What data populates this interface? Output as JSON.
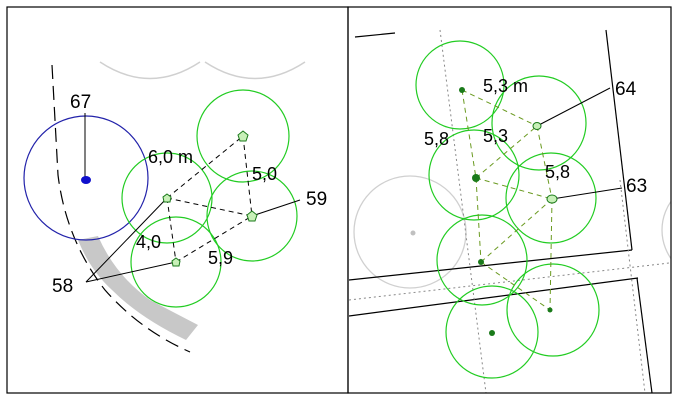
{
  "panel_left": {
    "labels": {
      "tree_67": "67",
      "tree_59": "59",
      "tree_58": "58",
      "dist_6_0": "6,0 m",
      "dist_5_0": "5,0",
      "dist_4_0": "4,0",
      "dist_5_9": "5,9"
    }
  },
  "panel_right": {
    "labels": {
      "tree_64": "64",
      "tree_63": "63",
      "dist_5_3_m": "5,3 m",
      "dist_5_8_a": "5,8",
      "dist_5_3": "5,3",
      "dist_5_8_b": "5,8"
    }
  },
  "colors": {
    "frame": "#000000",
    "crown_green": "#22cc22",
    "crown_blue": "#2222aa",
    "crown_grey": "#c8c8c8",
    "road_grey": "#c8c8c8",
    "stem_green_light": "#c8f0b8",
    "stem_green_dark": "#1a7a1a",
    "stem_blue": "#1010cc",
    "dashed_olive": "#6a9a20"
  }
}
